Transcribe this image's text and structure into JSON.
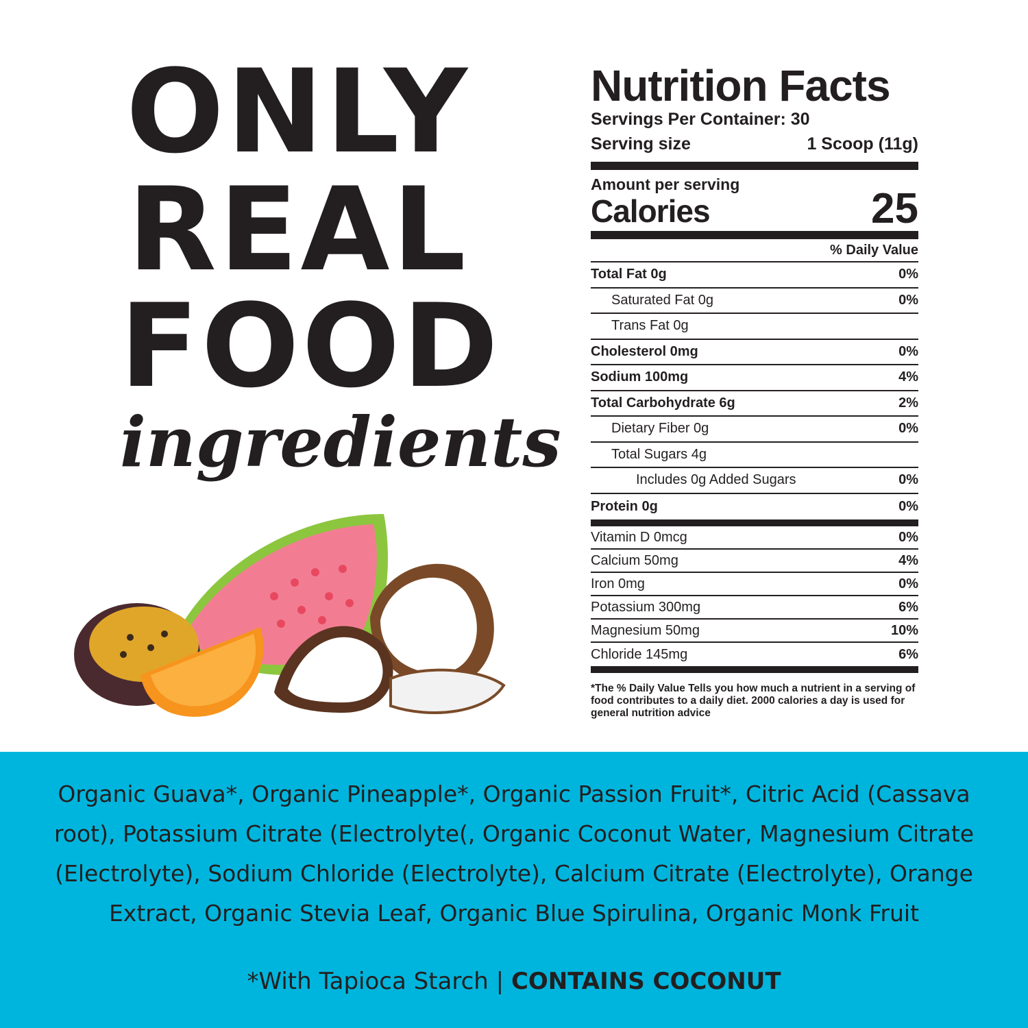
{
  "headline": {
    "line1": "ONLY",
    "line2": "REAL",
    "line3": "FOOD",
    "script": "ingredients"
  },
  "nutrition": {
    "title": "Nutrition Facts",
    "servings_per_container": "Servings Per Container: 30",
    "serving_size_label": "Serving size",
    "serving_size_value": "1 Scoop (11g)",
    "amount_per_serving": "Amount per serving",
    "calories_label": "Calories",
    "calories_value": "25",
    "daily_value_header": "% Daily Value",
    "nutrients": [
      {
        "label": "Total Fat 0g",
        "pct": "0%"
      },
      {
        "label": "Saturated Fat 0g",
        "pct": "0%"
      },
      {
        "label": "Trans Fat 0g",
        "pct": ""
      },
      {
        "label": "Cholesterol 0mg",
        "pct": "0%"
      },
      {
        "label": "Sodium 100mg",
        "pct": "4%"
      },
      {
        "label": "Total Carbohydrate 6g",
        "pct": "2%"
      },
      {
        "label": "Dietary Fiber 0g",
        "pct": "0%"
      },
      {
        "label": "Total Sugars 4g",
        "pct": ""
      },
      {
        "label": "Includes 0g Added Sugars",
        "pct": "0%"
      },
      {
        "label": "Protein 0g",
        "pct": "0%"
      }
    ],
    "minerals": [
      {
        "label": "Vitamin D 0mcg",
        "pct": "0%"
      },
      {
        "label": "Calcium 50mg",
        "pct": "4%"
      },
      {
        "label": "Iron 0mg",
        "pct": "0%"
      },
      {
        "label": "Potassium 300mg",
        "pct": "6%"
      },
      {
        "label": "Magnesium 50mg",
        "pct": "10%"
      },
      {
        "label": "Chloride 145mg",
        "pct": "6%"
      }
    ],
    "footnote": "*The % Daily Value Tells you how much a nutrient in a serving of food contributes to a daily diet. 2000 calories a day is used for general nutrition advice"
  },
  "ingredients": {
    "text": "Organic Guava*, Organic Pineapple*, Organic Passion Fruit*, Citric Acid (Cassava root), Potassium Citrate (Electrolyte(, Organic Coconut Water, Magnesium Citrate (Electrolyte), Sodium Chloride (Electrolyte), Calcium Citrate (Electrolyte), Orange Extract, Organic Stevia Leaf, Organic Blue Spirulina, Organic Monk Fruit",
    "note": "*With Tapioca Starch | ",
    "allergen": "CONTAINS COCONUT"
  },
  "colors": {
    "band": "#00b5dd",
    "text": "#231f20"
  }
}
